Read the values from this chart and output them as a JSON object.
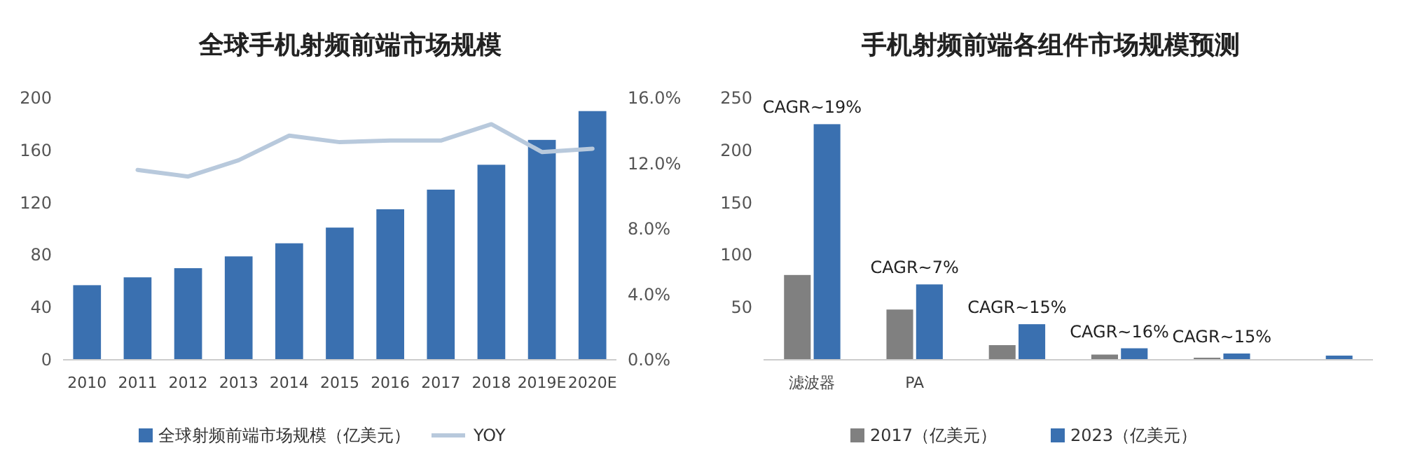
{
  "chart_data": [
    {
      "type": "bar",
      "title": "全球手机射频前端市场规模",
      "categories": [
        "2010",
        "2011",
        "2012",
        "2013",
        "2014",
        "2015",
        "2016",
        "2017",
        "2018",
        "2019E",
        "2020E"
      ],
      "series": [
        {
          "name": "全球射频前端市场规模（亿美元）",
          "color": "#3a70b0",
          "values": [
            57,
            63,
            70,
            79,
            89,
            101,
            115,
            130,
            149,
            168,
            190
          ]
        },
        {
          "name": "YOY",
          "type": "line",
          "axis": "y2",
          "color": "#b8c9dc",
          "values": [
            null,
            11.6,
            11.2,
            12.2,
            13.7,
            13.3,
            13.4,
            13.4,
            14.4,
            12.7,
            12.9
          ]
        }
      ],
      "ylim": [
        0,
        200
      ],
      "yticks": [
        0,
        40,
        80,
        120,
        160,
        200
      ],
      "y2lim": [
        0,
        16
      ],
      "y2ticks": [
        {
          "value": 0,
          "label": "0.0%"
        },
        {
          "value": 4,
          "label": "4.0%"
        },
        {
          "value": 8,
          "label": "8.0%"
        },
        {
          "value": 12,
          "label": "12.0%"
        },
        {
          "value": 16,
          "label": "16.0%"
        }
      ],
      "legend": "bottom",
      "grid": false
    },
    {
      "type": "bar",
      "title": "手机射频前端各组件市场规模预测",
      "categories": [
        "滤波器",
        "PA",
        null,
        null,
        null,
        null
      ],
      "series": [
        {
          "name": "2017（亿美元）",
          "color": "#808080",
          "values": [
            81,
            48,
            14,
            5,
            2,
            null
          ]
        },
        {
          "name": "2023（亿美元）",
          "color": "#3a70b0",
          "values": [
            225,
            72,
            34,
            11,
            6,
            4
          ]
        }
      ],
      "ylim": [
        0,
        250
      ],
      "yticks": [
        50,
        100,
        150,
        200,
        250
      ],
      "annotations": [
        "CAGR~19%",
        "CAGR~7%",
        "CAGR~15%",
        "CAGR~16%",
        "CAGR~15%"
      ],
      "legend": "bottom",
      "grid": false
    }
  ]
}
